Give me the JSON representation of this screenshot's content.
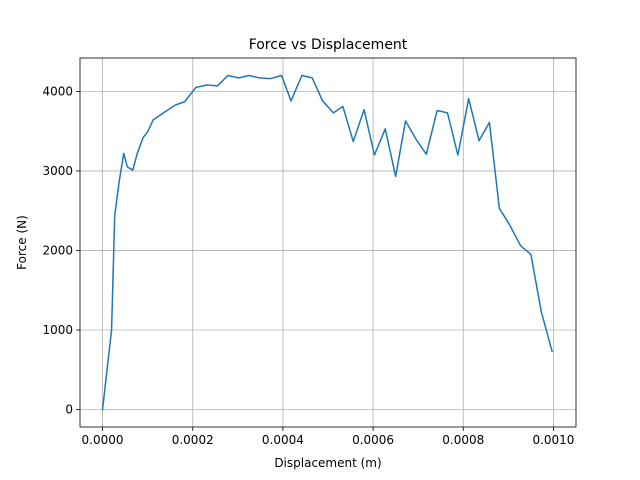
{
  "chart_data": {
    "type": "line",
    "title": "Force vs Displacement",
    "xlabel": "Displacement (m)",
    "ylabel": "Force (N)",
    "xlim": [
      -5e-05,
      0.00105
    ],
    "ylim": [
      -220,
      4420
    ],
    "xticks": [
      0.0,
      0.0002,
      0.0004,
      0.0006,
      0.0008,
      0.001
    ],
    "xtick_labels": [
      "0.0000",
      "0.0002",
      "0.0004",
      "0.0006",
      "0.0008",
      "0.0010"
    ],
    "yticks": [
      0,
      1000,
      2000,
      3000,
      4000
    ],
    "ytick_labels": [
      "0",
      "1000",
      "2000",
      "3000",
      "4000"
    ],
    "grid": true,
    "series": [
      {
        "color": "#1f77b4",
        "x": [
          0.0,
          2e-05,
          2.7e-05,
          3.7e-05,
          4.7e-05,
          5.5e-05,
          6.7e-05,
          7.7e-05,
          9e-05,
          0.0001,
          0.000112,
          0.000135,
          0.000162,
          0.000182,
          0.000207,
          0.000232,
          0.000255,
          0.000278,
          0.000302,
          0.000325,
          0.000348,
          0.000372,
          0.000397,
          0.000418,
          0.000442,
          0.000465,
          0.000488,
          0.000512,
          0.000533,
          0.000556,
          0.00058,
          0.000603,
          0.000627,
          0.00065,
          0.000672,
          0.000695,
          0.000718,
          0.000742,
          0.000765,
          0.000788,
          0.000812,
          0.000835,
          0.000858,
          0.00088,
          0.000903,
          0.000927,
          0.00095,
          0.000973,
          0.000997
        ],
        "y": [
          0,
          1000,
          2440,
          2870,
          3220,
          3050,
          3010,
          3220,
          3420,
          3490,
          3640,
          3730,
          3830,
          3870,
          4050,
          4080,
          4070,
          4200,
          4170,
          4200,
          4170,
          4160,
          4200,
          3880,
          4200,
          4170,
          3880,
          3730,
          3810,
          3370,
          3770,
          3200,
          3530,
          2930,
          3630,
          3400,
          3210,
          3760,
          3730,
          3200,
          3910,
          3380,
          3610,
          2530,
          2320,
          2060,
          1950,
          1230,
          730
        ]
      }
    ]
  }
}
